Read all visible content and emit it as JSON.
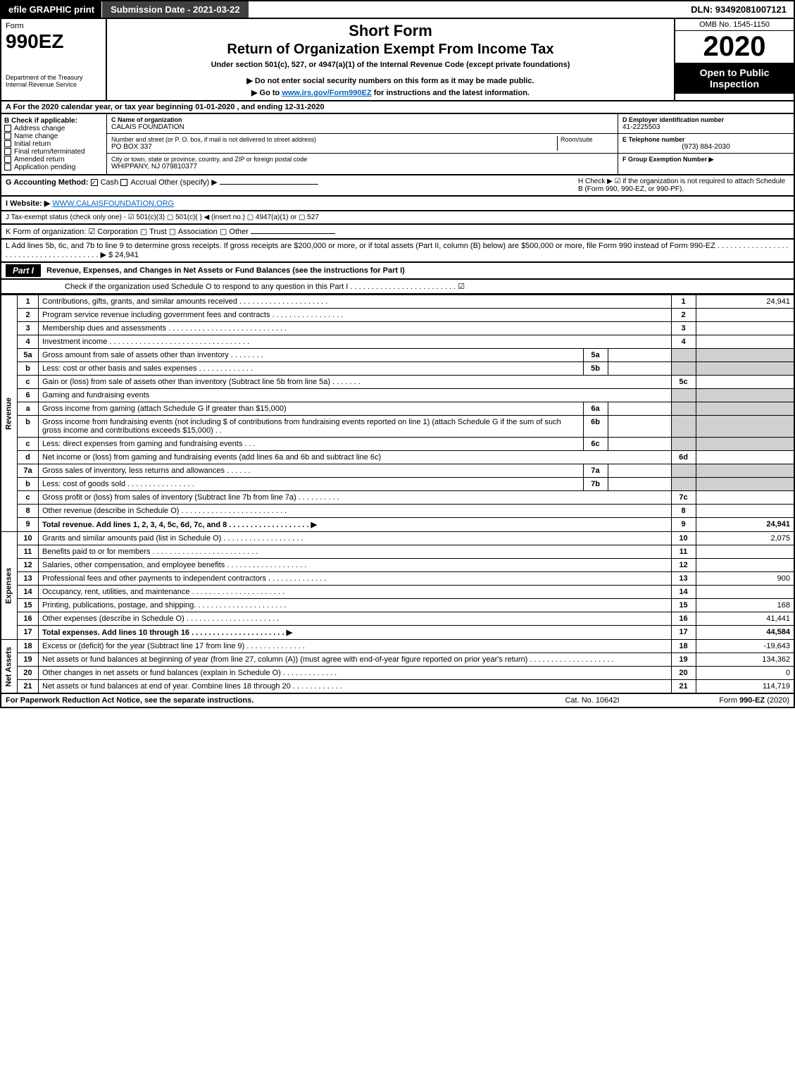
{
  "topbar": {
    "efile": "efile GRAPHIC print",
    "submission": "Submission Date - 2021-03-22",
    "dln": "DLN: 93492081007121"
  },
  "header": {
    "form_word": "Form",
    "form_no": "990EZ",
    "dept": "Department of the Treasury",
    "irs": "Internal Revenue Service",
    "short_form": "Short Form",
    "title": "Return of Organization Exempt From Income Tax",
    "under": "Under section 501(c), 527, or 4947(a)(1) of the Internal Revenue Code (except private foundations)",
    "ssn_warn": "▶ Do not enter social security numbers on this form as it may be made public.",
    "goto": "▶ Go to www.irs.gov/Form990EZ for instructions and the latest information.",
    "goto_url": "www.irs.gov/Form990EZ",
    "omb": "OMB No. 1545-1150",
    "year": "2020",
    "open": "Open to Public Inspection"
  },
  "periodA": "A For the 2020 calendar year, or tax year beginning 01-01-2020 , and ending 12-31-2020",
  "boxB": {
    "title": "B Check if applicable:",
    "opts": [
      "Address change",
      "Name change",
      "Initial return",
      "Final return/terminated",
      "Amended return",
      "Application pending"
    ]
  },
  "boxC": {
    "label": "C Name of organization",
    "name": "CALAIS FOUNDATION",
    "street_label": "Number and street (or P. O. box, if mail is not delivered to street address)",
    "room_label": "Room/suite",
    "street": "PO BOX 337",
    "city_label": "City or town, state or province, country, and ZIP or foreign postal code",
    "city": "WHIPPANY, NJ  079810377"
  },
  "boxD": {
    "label": "D Employer identification number",
    "val": "41-2225503"
  },
  "boxE": {
    "label": "E Telephone number",
    "val": "(973) 884-2030"
  },
  "boxF": {
    "label": "F Group Exemption Number  ▶"
  },
  "boxG": {
    "label": "G Accounting Method:",
    "cash": "Cash",
    "accrual": "Accrual",
    "other": "Other (specify) ▶"
  },
  "boxH": {
    "text": "H Check ▶ ☑ if the organization is not required to attach Schedule B (Form 990, 990-EZ, or 990-PF)."
  },
  "boxI": {
    "label": "I Website: ▶",
    "val": "WWW.CALAISFOUNDATION.ORG"
  },
  "boxJ": {
    "label": "J Tax-exempt status (check only one) - ☑ 501(c)(3)  ▢ 501(c)(  ) ◀ (insert no.)  ▢ 4947(a)(1) or  ▢ 527"
  },
  "boxK": {
    "label": "K Form of organization: ☑ Corporation  ▢ Trust  ▢ Association  ▢ Other"
  },
  "boxL": {
    "text": "L Add lines 5b, 6c, and 7b to line 9 to determine gross receipts. If gross receipts are $200,000 or more, or if total assets (Part II, column (B) below) are $500,000 or more, file Form 990 instead of Form 990-EZ . . . . . . . . . . . . . . . . . . . . . . . . . . . . . . . . . . . . . . . ▶",
    "amount": "$ 24,941"
  },
  "part1": {
    "tag": "Part I",
    "title": "Revenue, Expenses, and Changes in Net Assets or Fund Balances (see the instructions for Part I)",
    "check": "Check if the organization used Schedule O to respond to any question in this Part I . . . . . . . . . . . . . . . . . . . . . . . . . ☑"
  },
  "sections": {
    "revenue": "Revenue",
    "expenses": "Expenses",
    "netassets": "Net Assets"
  },
  "lines": [
    {
      "n": "1",
      "t": "Contributions, gifts, grants, and similar amounts received . . . . . . . . . . . . . . . . . . . . .",
      "ln": "1",
      "amt": "24,941"
    },
    {
      "n": "2",
      "t": "Program service revenue including government fees and contracts . . . . . . . . . . . . . . . . .",
      "ln": "2",
      "amt": ""
    },
    {
      "n": "3",
      "t": "Membership dues and assessments . . . . . . . . . . . . . . . . . . . . . . . . . . . .",
      "ln": "3",
      "amt": ""
    },
    {
      "n": "4",
      "t": "Investment income . . . . . . . . . . . . . . . . . . . . . . . . . . . . . . . . .",
      "ln": "4",
      "amt": ""
    },
    {
      "n": "5a",
      "t": "Gross amount from sale of assets other than inventory . . . . . . . .",
      "sub": "5a",
      "subval": ""
    },
    {
      "n": "b",
      "t": "Less: cost or other basis and sales expenses . . . . . . . . . . . . .",
      "sub": "5b",
      "subval": ""
    },
    {
      "n": "c",
      "t": "Gain or (loss) from sale of assets other than inventory (Subtract line 5b from line 5a) . . . . . . .",
      "ln": "5c",
      "amt": ""
    },
    {
      "n": "6",
      "t": "Gaming and fundraising events"
    },
    {
      "n": "a",
      "t": "Gross income from gaming (attach Schedule G if greater than $15,000)",
      "sub": "6a",
      "subval": ""
    },
    {
      "n": "b",
      "t": "Gross income from fundraising events (not including $                  of contributions from fundraising events reported on line 1) (attach Schedule G if the sum of such gross income and contributions exceeds $15,000)    . .",
      "sub": "6b",
      "subval": ""
    },
    {
      "n": "c",
      "t": "Less: direct expenses from gaming and fundraising events    . . .",
      "sub": "6c",
      "subval": ""
    },
    {
      "n": "d",
      "t": "Net income or (loss) from gaming and fundraising events (add lines 6a and 6b and subtract line 6c)",
      "ln": "6d",
      "amt": ""
    },
    {
      "n": "7a",
      "t": "Gross sales of inventory, less returns and allowances . . . . . .",
      "sub": "7a",
      "subval": ""
    },
    {
      "n": "b",
      "t": "Less: cost of goods sold         . . . . . . . . . . . . . . . .",
      "sub": "7b",
      "subval": ""
    },
    {
      "n": "c",
      "t": "Gross profit or (loss) from sales of inventory (Subtract line 7b from line 7a) . . . . . . . . . .",
      "ln": "7c",
      "amt": ""
    },
    {
      "n": "8",
      "t": "Other revenue (describe in Schedule O) . . . . . . . . . . . . . . . . . . . . . . . . .",
      "ln": "8",
      "amt": ""
    },
    {
      "n": "9",
      "t": "Total revenue. Add lines 1, 2, 3, 4, 5c, 6d, 7c, and 8  . . . . . . . . . . . . . . . . . . . ▶",
      "ln": "9",
      "amt": "24,941",
      "bold": true
    }
  ],
  "exp_lines": [
    {
      "n": "10",
      "t": "Grants and similar amounts paid (list in Schedule O) . . . . . . . . . . . . . . . . . . .",
      "ln": "10",
      "amt": "2,075"
    },
    {
      "n": "11",
      "t": "Benefits paid to or for members    . . . . . . . . . . . . . . . . . . . . . . . . .",
      "ln": "11",
      "amt": ""
    },
    {
      "n": "12",
      "t": "Salaries, other compensation, and employee benefits . . . . . . . . . . . . . . . . . . .",
      "ln": "12",
      "amt": ""
    },
    {
      "n": "13",
      "t": "Professional fees and other payments to independent contractors . . . . . . . . . . . . . .",
      "ln": "13",
      "amt": "900"
    },
    {
      "n": "14",
      "t": "Occupancy, rent, utilities, and maintenance . . . . . . . . . . . . . . . . . . . . . .",
      "ln": "14",
      "amt": ""
    },
    {
      "n": "15",
      "t": "Printing, publications, postage, and shipping. . . . . . . . . . . . . . . . . . . . . .",
      "ln": "15",
      "amt": "168"
    },
    {
      "n": "16",
      "t": "Other expenses (describe in Schedule O)    . . . . . . . . . . . . . . . . . . . . . .",
      "ln": "16",
      "amt": "41,441"
    },
    {
      "n": "17",
      "t": "Total expenses. Add lines 10 through 16   . . . . . . . . . . . . . . . . . . . . . . ▶",
      "ln": "17",
      "amt": "44,584",
      "bold": true
    }
  ],
  "na_lines": [
    {
      "n": "18",
      "t": "Excess or (deficit) for the year (Subtract line 17 from line 9)       . . . . . . . . . . . . . .",
      "ln": "18",
      "amt": "-19,643"
    },
    {
      "n": "19",
      "t": "Net assets or fund balances at beginning of year (from line 27, column (A)) (must agree with end-of-year figure reported on prior year's return) . . . . . . . . . . . . . . . . . . . .",
      "ln": "19",
      "amt": "134,362"
    },
    {
      "n": "20",
      "t": "Other changes in net assets or fund balances (explain in Schedule O) . . . . . . . . . . . . .",
      "ln": "20",
      "amt": "0"
    },
    {
      "n": "21",
      "t": "Net assets or fund balances at end of year. Combine lines 18 through 20 . . . . . . . . . . . .",
      "ln": "21",
      "amt": "114,719"
    }
  ],
  "footer": {
    "left": "For Paperwork Reduction Act Notice, see the separate instructions.",
    "mid": "Cat. No. 10642I",
    "right": "Form 990-EZ (2020)"
  }
}
